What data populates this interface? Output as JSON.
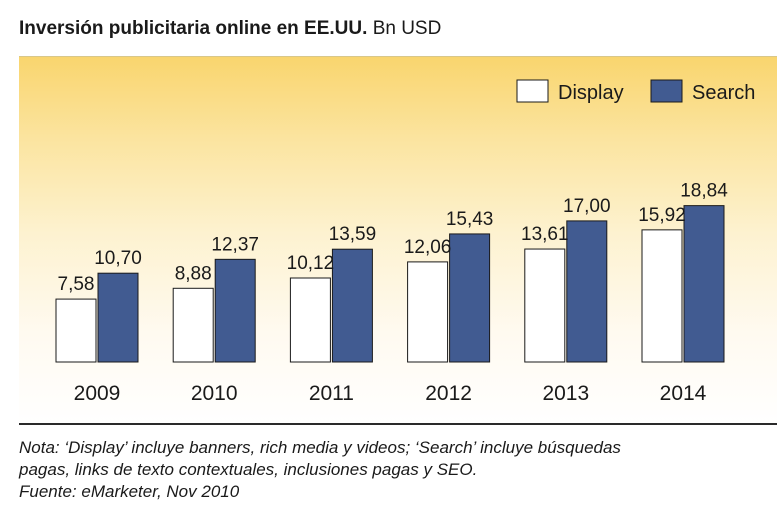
{
  "title": {
    "bold": "Inversión publicitaria online en EE.UU.",
    "unit": "Bn USD"
  },
  "chart_data": {
    "type": "bar",
    "categories": [
      "2009",
      "2010",
      "2011",
      "2012",
      "2013",
      "2014"
    ],
    "series": [
      {
        "name": "Display",
        "values": [
          7.58,
          8.88,
          10.12,
          12.06,
          13.61,
          15.92
        ],
        "labels": [
          "7,58",
          "8,88",
          "10,12",
          "12,06",
          "13,61",
          "15,92"
        ],
        "color": "#ffffff"
      },
      {
        "name": "Search",
        "values": [
          10.7,
          12.37,
          13.59,
          15.43,
          17.0,
          18.84
        ],
        "labels": [
          "10,70",
          "12,37",
          "13,59",
          "15,43",
          "17,00",
          "18,84"
        ],
        "color": "#415b91"
      }
    ],
    "legend": "top-right",
    "grid": false,
    "ylim": [
      0,
      25
    ]
  },
  "notes": {
    "line1": "Nota: ‘Display’ incluye banners, rich media y videos; ‘Search’ incluye búsquedas",
    "line2": "pagas, links de texto contextuales, inclusiones pagas y SEO.",
    "source": "Fuente: eMarketer, Nov 2010"
  }
}
